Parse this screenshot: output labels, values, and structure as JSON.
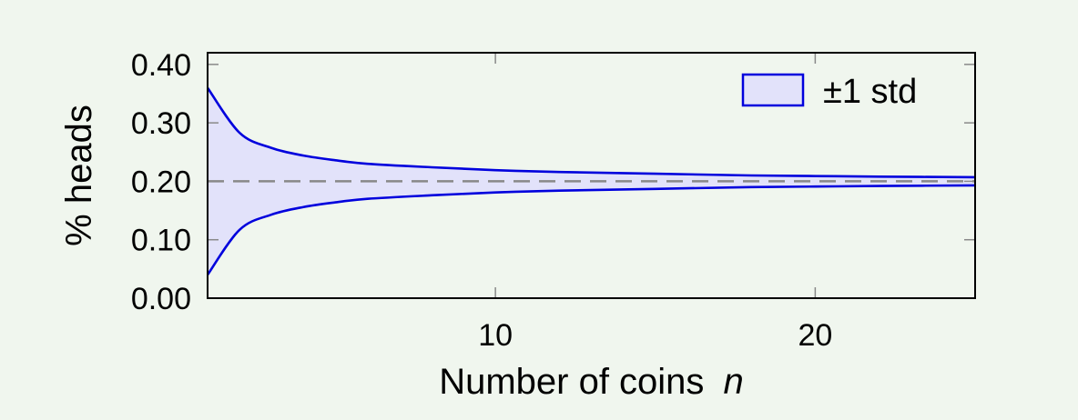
{
  "chart_data": {
    "type": "area",
    "title": "",
    "xlabel": "Number of coins",
    "xlabel_var": "n",
    "ylabel": "% heads",
    "xlim": [
      1,
      25
    ],
    "ylim": [
      0,
      0.42
    ],
    "xticks": [
      10,
      20
    ],
    "xtick_labels": [
      "10",
      "20"
    ],
    "yticks": [
      0.0,
      0.1,
      0.2,
      0.3,
      0.4
    ],
    "ytick_labels": [
      "0.00",
      "0.10",
      "0.20",
      "0.30",
      "0.40"
    ],
    "grid": false,
    "legend_position": "top-right",
    "reference_line": {
      "y": 0.2,
      "style": "dashed"
    },
    "series": [
      {
        "name": "±1 std",
        "fill_color": "#e2e2fa",
        "line_color": "#0000dd",
        "x": [
          1,
          2,
          3,
          4,
          5,
          6,
          8,
          10,
          12,
          15,
          18,
          20,
          22,
          25
        ],
        "upper": [
          0.36,
          0.283,
          0.257,
          0.244,
          0.236,
          0.23,
          0.224,
          0.219,
          0.216,
          0.213,
          0.21,
          0.209,
          0.208,
          0.207
        ],
        "lower": [
          0.04,
          0.117,
          0.143,
          0.156,
          0.164,
          0.17,
          0.176,
          0.181,
          0.184,
          0.187,
          0.19,
          0.191,
          0.192,
          0.193
        ]
      }
    ]
  }
}
